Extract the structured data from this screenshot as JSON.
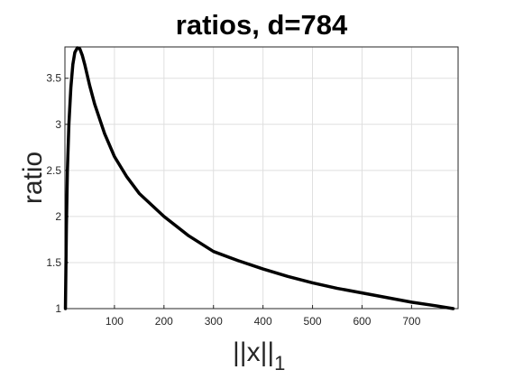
{
  "chart_data": {
    "type": "line",
    "title": "ratios, d=784",
    "y_label": "ratio",
    "x_label": {
      "text": "||x||",
      "subscript": "1"
    },
    "x": [
      1,
      3,
      5,
      8,
      12,
      16,
      20,
      25,
      30,
      35,
      40,
      50,
      60,
      80,
      100,
      125,
      150,
      200,
      250,
      300,
      350,
      400,
      450,
      500,
      550,
      600,
      650,
      700,
      750,
      784
    ],
    "series": [
      {
        "color": "#000000",
        "values": [
          1.0,
          1.9,
          2.5,
          3.0,
          3.4,
          3.65,
          3.78,
          3.83,
          3.82,
          3.75,
          3.65,
          3.42,
          3.22,
          2.9,
          2.65,
          2.43,
          2.25,
          2.0,
          1.79,
          1.62,
          1.52,
          1.43,
          1.35,
          1.28,
          1.22,
          1.17,
          1.12,
          1.07,
          1.03,
          1.0
        ]
      }
    ],
    "xlim": [
      0,
      794
    ],
    "ylim": [
      1,
      3.84
    ],
    "xticks": [
      100,
      200,
      300,
      400,
      500,
      600,
      700
    ],
    "yticks": [
      1,
      1.5,
      2,
      2.5,
      3,
      3.5
    ],
    "grid": true
  }
}
